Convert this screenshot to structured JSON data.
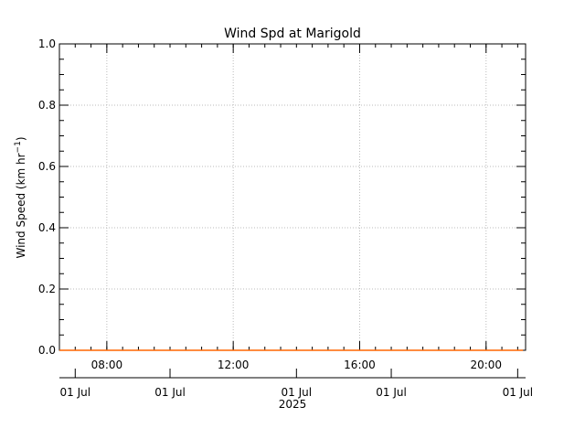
{
  "chart_data": {
    "type": "line",
    "title": "Wind Spd at Marigold",
    "ylabel_main": "Wind Speed (km hr",
    "ylabel_sup": "−1",
    "ylabel_close": ")",
    "ylim": [
      0.0,
      1.0
    ],
    "y_ticks": [
      "0.0",
      "0.2",
      "0.4",
      "0.6",
      "0.8",
      "1.0"
    ],
    "y_tick_values": [
      0.0,
      0.2,
      0.4,
      0.6,
      0.8,
      1.0
    ],
    "time_range": [
      "06:30",
      "21:15"
    ],
    "time_ticks": [
      {
        "label": "08:00",
        "time": "08:00"
      },
      {
        "label": "12:00",
        "time": "12:00"
      },
      {
        "label": "16:00",
        "time": "16:00"
      },
      {
        "label": "20:00",
        "time": "20:00"
      }
    ],
    "date_ticks": [
      {
        "label": "01 Jul",
        "time": "07:00"
      },
      {
        "label": "01 Jul",
        "time": "10:00"
      },
      {
        "label": "01 Jul",
        "time": "14:00"
      },
      {
        "label": "01 Jul",
        "time": "17:00"
      },
      {
        "label": "01 Jul",
        "time": "21:00"
      }
    ],
    "year_label": "2025",
    "grid": true,
    "series": [
      {
        "color": "#ff6600",
        "x": [
          "06:30",
          "21:10"
        ],
        "y": [
          0.0,
          0.0
        ]
      }
    ]
  }
}
